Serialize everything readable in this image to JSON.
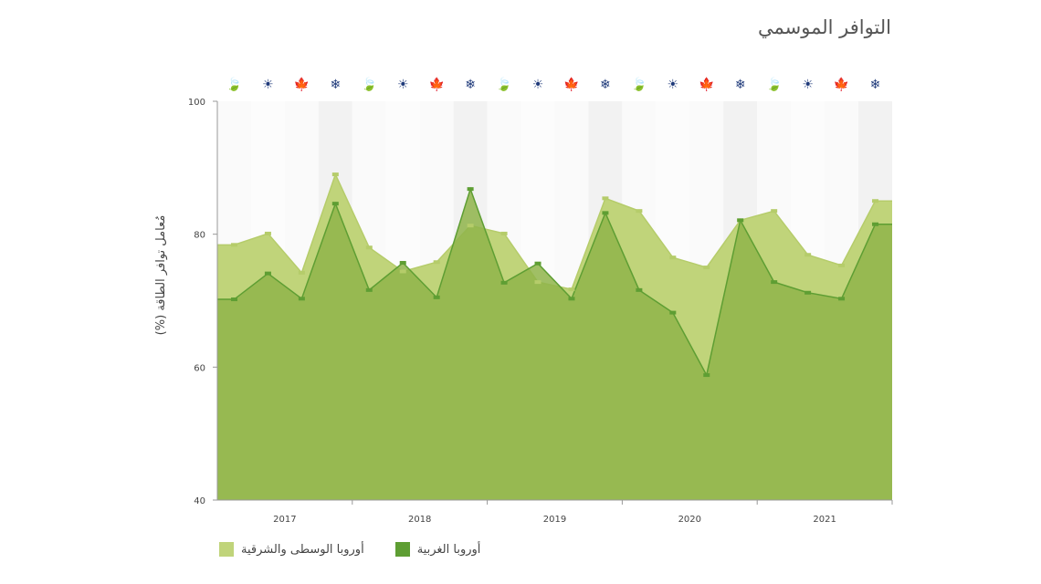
{
  "chart_data": {
    "type": "area",
    "title": "التوافر الموسمي",
    "ylabel": "مُعامل توافر الطاقة (%)",
    "xlabel": "",
    "ylim": [
      40,
      100
    ],
    "yticks": [
      40,
      60,
      80,
      100
    ],
    "year_labels": [
      "2017",
      "2018",
      "2019",
      "2020",
      "2021"
    ],
    "seasons_per_year": 4,
    "season_icons": [
      "leaf-icon",
      "sun-icon",
      "maple-leaf-icon",
      "snowflake-icon"
    ],
    "season_glyphs": [
      "🍃",
      "☀",
      "🍁",
      "❄"
    ],
    "icon_color": "#1f3a7a",
    "grid": false,
    "legend_position": "bottom-left",
    "series": [
      {
        "name": "أوروبا الوسطى والشرقية",
        "color": "#c0d47a",
        "stroke": "#b5cc6a",
        "values": [
          78.4,
          80.1,
          74.2,
          89.0,
          78.0,
          74.4,
          75.8,
          81.3,
          80.1,
          72.8,
          71.7,
          85.4,
          83.5,
          76.5,
          75.0,
          82.1,
          83.5,
          76.9,
          75.3,
          85.0
        ]
      },
      {
        "name": "أوروبا الغربية",
        "color": "#8fb44a",
        "stroke": "#5e9e33",
        "values": [
          70.2,
          74.1,
          70.3,
          84.6,
          71.6,
          75.7,
          70.5,
          86.8,
          72.7,
          75.6,
          70.3,
          83.2,
          71.6,
          68.2,
          58.8,
          82.1,
          72.8,
          71.2,
          70.3,
          81.5
        ]
      }
    ]
  }
}
